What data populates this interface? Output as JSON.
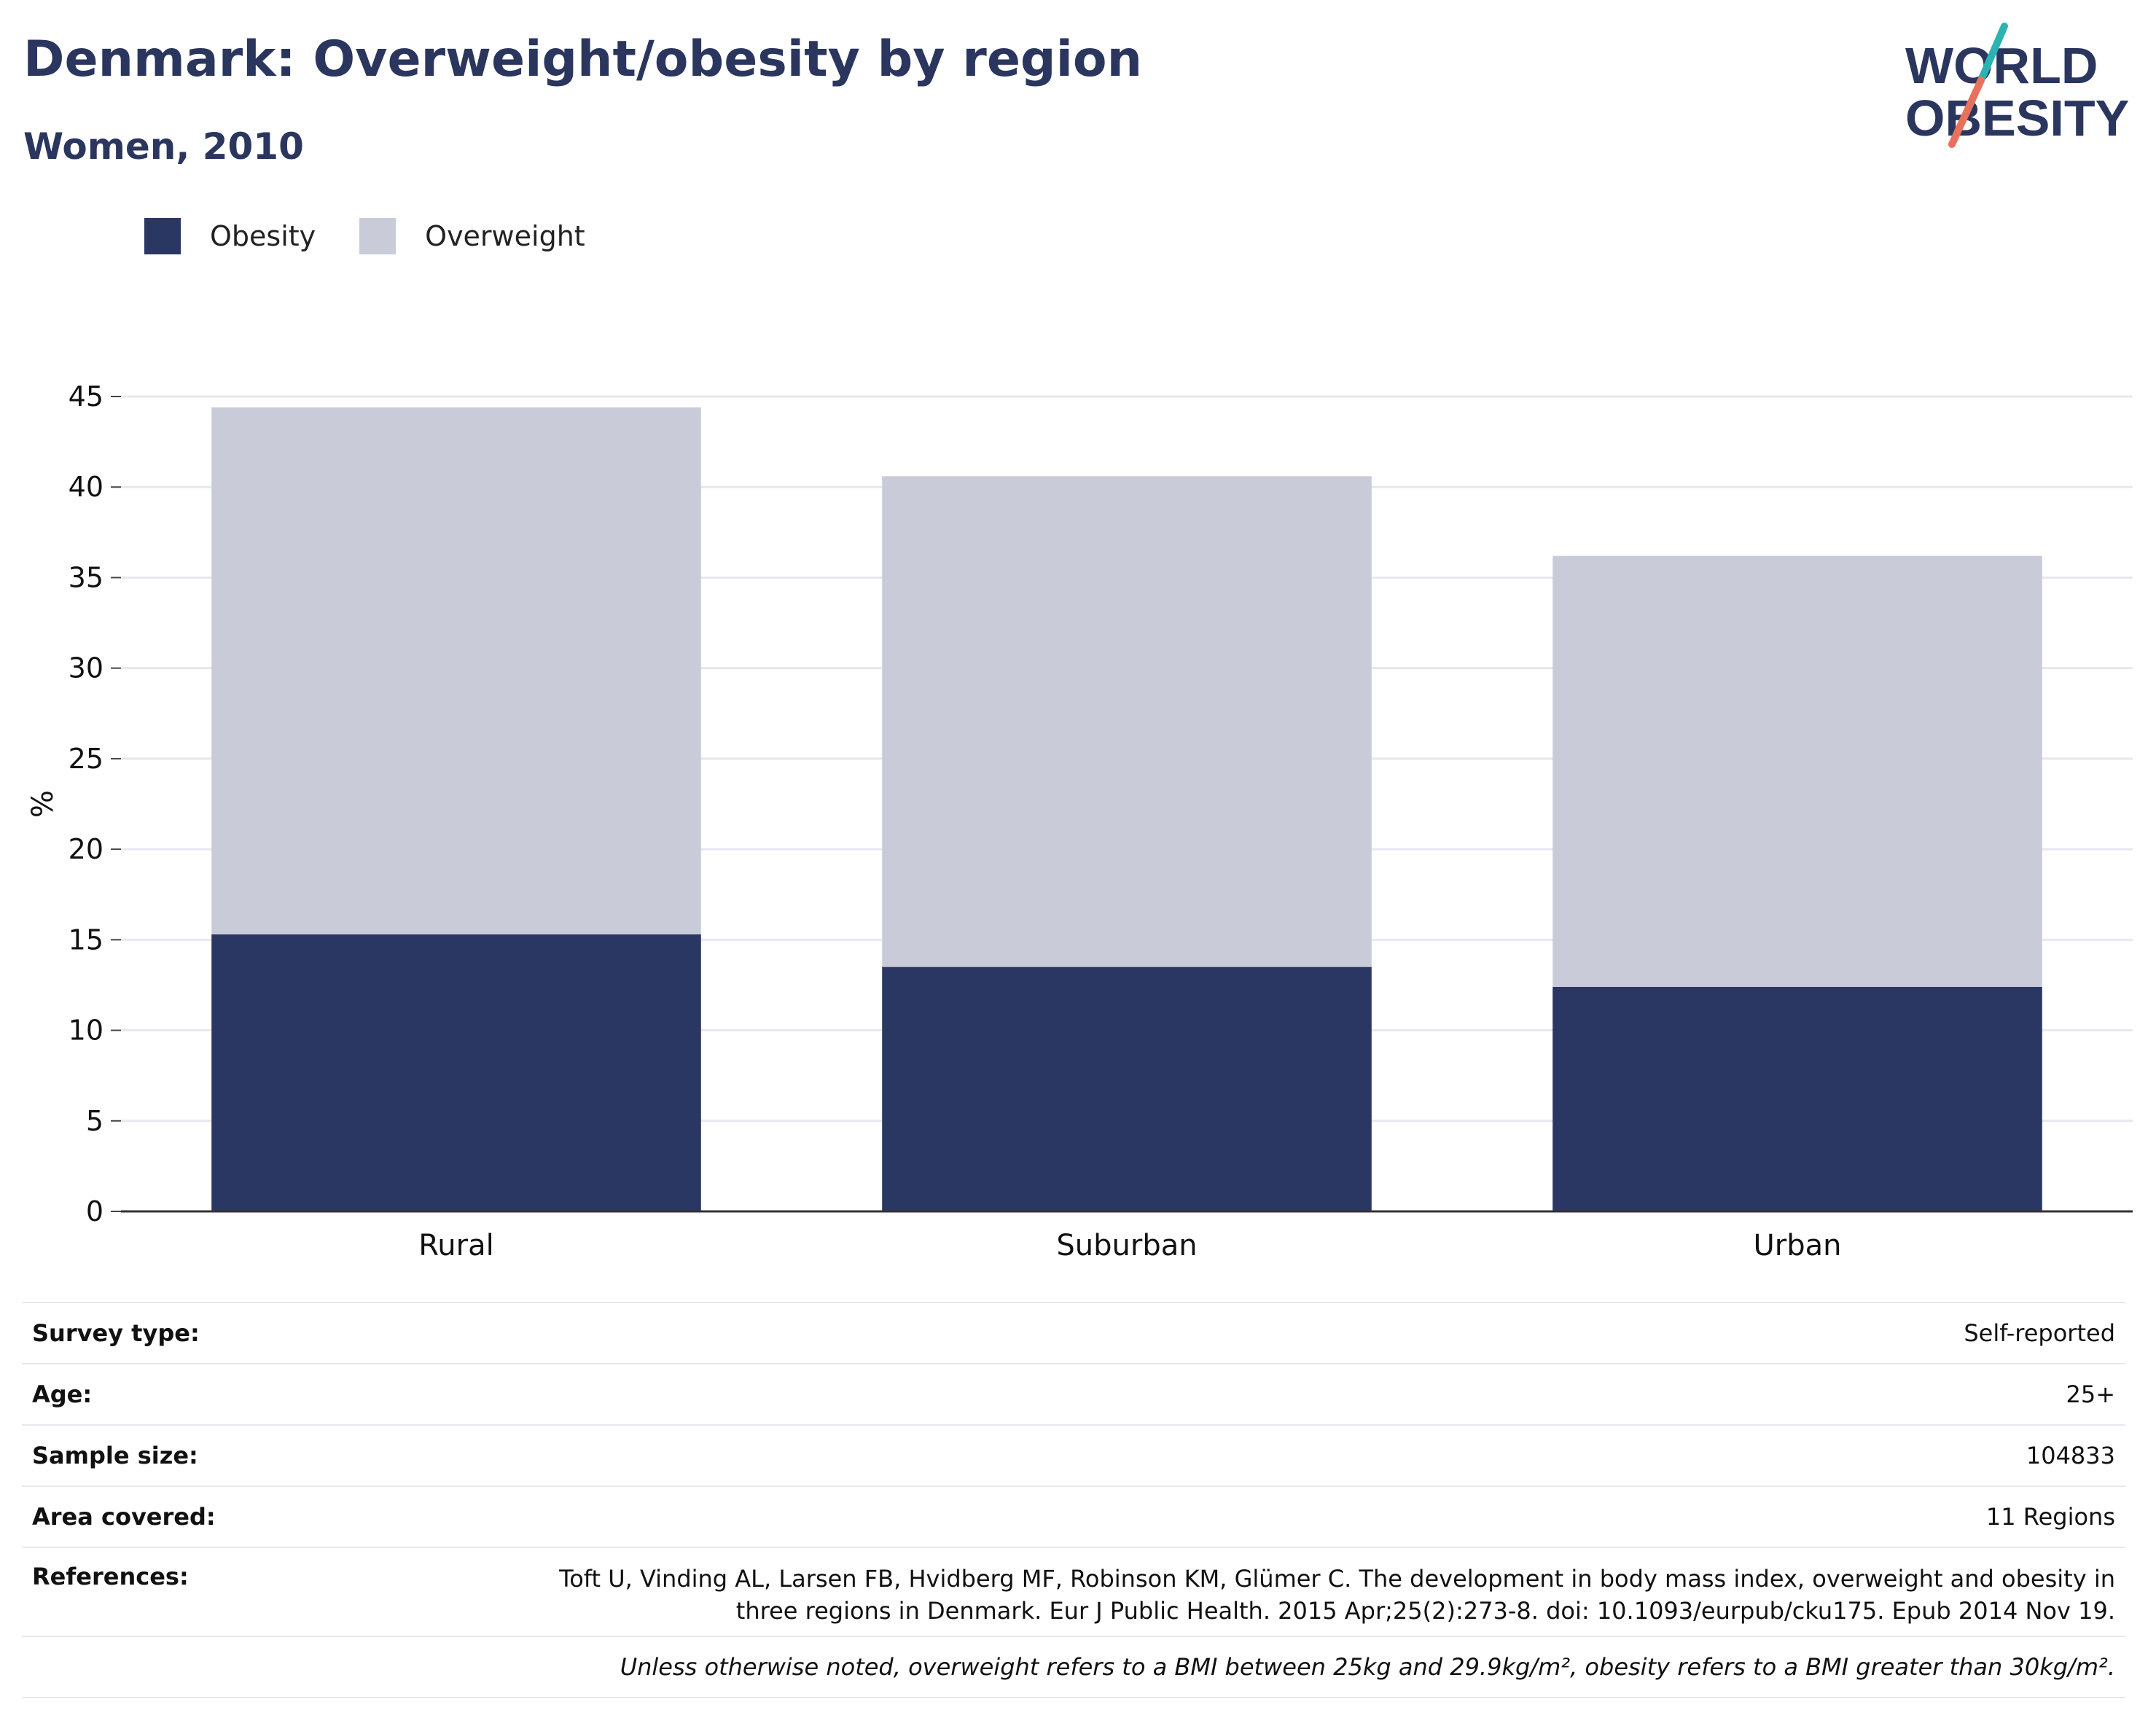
{
  "header": {
    "title": "Denmark: Overweight/obesity by region",
    "subtitle": "Women, 2010"
  },
  "logo": {
    "line1": "WORLD",
    "line2": "OBESITY",
    "accent_teal": "#2bb3b1",
    "accent_coral": "#e8715c",
    "text_color": "#2b365f"
  },
  "colors": {
    "obesity": "#2b3763",
    "overweight": "#c9ccd8",
    "title": "#2b365f"
  },
  "chart_data": {
    "type": "bar",
    "stacked": true,
    "categories": [
      "Rural",
      "Suburban",
      "Urban"
    ],
    "series": [
      {
        "name": "Obesity",
        "values": [
          15.3,
          13.5,
          12.4
        ]
      },
      {
        "name": "Overweight",
        "values": [
          29.1,
          27.1,
          23.8
        ]
      }
    ],
    "ylabel": "%",
    "ylim": [
      0,
      45
    ],
    "yticks": [
      0,
      5,
      10,
      15,
      20,
      25,
      30,
      35,
      40,
      45
    ],
    "grid": true,
    "legend_position": "top-left"
  },
  "info": {
    "rows": [
      {
        "label": "Survey type:",
        "value": "Self-reported"
      },
      {
        "label": "Age:",
        "value": "25+"
      },
      {
        "label": "Sample size:",
        "value": "104833"
      },
      {
        "label": "Area covered:",
        "value": "11 Regions"
      }
    ],
    "references_label": "References:",
    "references": "Toft U, Vinding AL, Larsen FB, Hvidberg MF, Robinson KM, Glümer C. The development in body mass index, overweight and obesity in three regions in Denmark. Eur J Public Health. 2015 Apr;25(2):273-8. doi: 10.1093/eurpub/cku175. Epub 2014 Nov 19.",
    "note": "Unless otherwise noted, overweight refers to a BMI between 25kg and 29.9kg/m², obesity refers to a BMI greater than 30kg/m²."
  }
}
